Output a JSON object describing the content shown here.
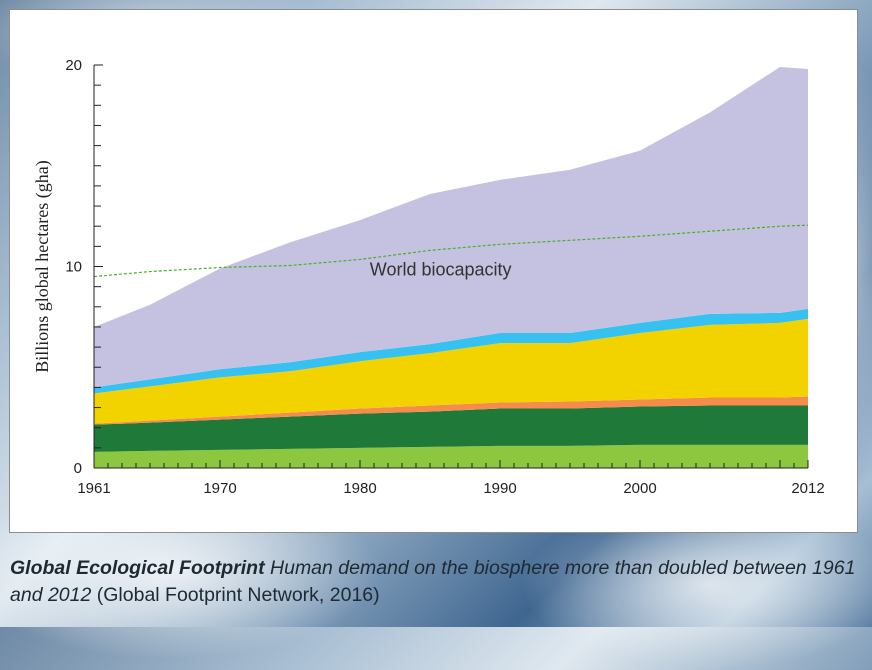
{
  "caption": {
    "title": "Global Ecological Footprint",
    "italic_text": "Human demand on the biosphere more than doubled between 1961 and 2012",
    "source": "(Global Footprint Network, 2016)"
  },
  "chart_data": {
    "type": "area",
    "stacked": true,
    "title": "",
    "xlabel": "",
    "ylabel": "Billions global hectares (gha)",
    "xlim": [
      1961,
      2012
    ],
    "ylim": [
      0,
      20
    ],
    "x_tick_labels": [
      "1961",
      "1970",
      "1980",
      "1990",
      "2000",
      "2012"
    ],
    "y_tick_labels": [
      "0",
      "10",
      "20"
    ],
    "grid": false,
    "legend": "none",
    "x": [
      1961,
      1965,
      1970,
      1975,
      1980,
      1985,
      1990,
      1995,
      2000,
      2005,
      2010,
      2012
    ],
    "series": [
      {
        "color": "#8dc63f",
        "values": [
          0.8,
          0.85,
          0.9,
          0.95,
          1.0,
          1.05,
          1.1,
          1.1,
          1.15,
          1.15,
          1.15,
          1.15
        ]
      },
      {
        "color": "#1f7a3a",
        "values": [
          1.35,
          1.4,
          1.5,
          1.6,
          1.7,
          1.75,
          1.85,
          1.85,
          1.9,
          1.95,
          1.95,
          1.95
        ]
      },
      {
        "color": "#f58c4b",
        "values": [
          0.05,
          0.1,
          0.15,
          0.2,
          0.25,
          0.3,
          0.3,
          0.35,
          0.35,
          0.4,
          0.4,
          0.45
        ]
      },
      {
        "color": "#f2d300",
        "values": [
          1.5,
          1.7,
          1.95,
          2.05,
          2.35,
          2.6,
          2.95,
          2.9,
          3.3,
          3.6,
          3.7,
          3.85
        ]
      },
      {
        "color": "#36c1f0",
        "values": [
          0.3,
          0.35,
          0.4,
          0.45,
          0.45,
          0.45,
          0.5,
          0.5,
          0.5,
          0.55,
          0.5,
          0.5
        ]
      },
      {
        "color": "#c5c1e0",
        "values": [
          3.0,
          3.7,
          5.0,
          5.95,
          6.55,
          7.45,
          7.6,
          8.1,
          8.55,
          10.0,
          12.2,
          11.9
        ]
      }
    ],
    "reference_line": {
      "label": "World biocapacity",
      "color": "#4caf27",
      "style": "dashed",
      "x": [
        1961,
        1965,
        1970,
        1975,
        1980,
        1985,
        1990,
        1995,
        2000,
        2005,
        2010,
        2012
      ],
      "values": [
        9.5,
        9.75,
        9.95,
        10.05,
        10.35,
        10.8,
        11.1,
        11.3,
        11.5,
        11.75,
        12.0,
        12.05
      ]
    }
  }
}
